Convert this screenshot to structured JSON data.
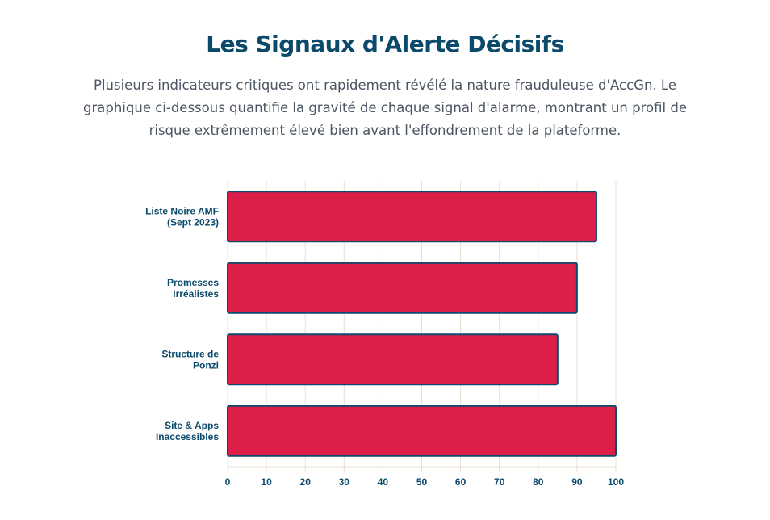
{
  "header": {
    "title": "Les Signaux d'Alerte Décisifs",
    "subtitle": "Plusieurs indicateurs critiques ont rapidement révélé la nature frauduleuse d'AccGn. Le graphique ci-dessous quantifie la gravité de chaque signal d'alarme, montrant un profil de risque extrêmement élevé bien avant l'effondrement de la plateforme."
  },
  "chart_data": {
    "type": "bar",
    "orientation": "horizontal",
    "categories": [
      [
        "Liste Noire AMF",
        "(Sept 2023)"
      ],
      [
        "Promesses",
        "Irréalistes"
      ],
      [
        "Structure de",
        "Ponzi"
      ],
      [
        "Site & Apps",
        "Inaccessibles"
      ]
    ],
    "values": [
      95,
      90,
      85,
      100
    ],
    "xlim": [
      0,
      100
    ],
    "xticks": [
      "0",
      "10",
      "20",
      "30",
      "40",
      "50",
      "60",
      "70",
      "80",
      "90",
      "100"
    ],
    "grid": true,
    "legend": "none",
    "colors": {
      "bar": "#dc1f48",
      "bar_border": "#0d4a6e",
      "grid": "#e8dfcf",
      "text": "#0b4a6b"
    }
  }
}
